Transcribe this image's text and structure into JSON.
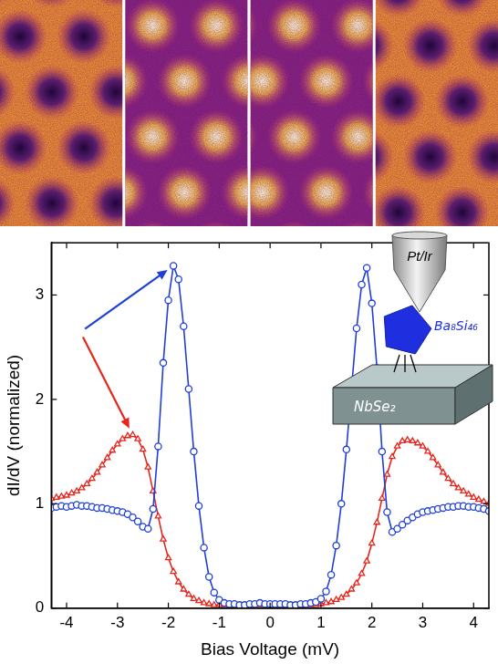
{
  "chart_data": {
    "type": "line",
    "x_label": "Bias Voltage (mV)",
    "y_label": "dI/dV (normalized)",
    "annotations": {
      "tip": "Pt/Ir",
      "cluster": "Ba₈Si₄₆",
      "substrate": "NbSe₂"
    },
    "x": [
      -4.3,
      -4.2,
      -4.1,
      -4,
      -3.9,
      -3.8,
      -3.7,
      -3.6,
      -3.5,
      -3.4,
      -3.3,
      -3.2,
      -3.1,
      -3,
      -2.9,
      -2.8,
      -2.7,
      -2.6,
      -2.5,
      -2.4,
      -2.3,
      -2.2,
      -2.1,
      -2,
      -1.9,
      -1.8,
      -1.7,
      -1.6,
      -1.5,
      -1.4,
      -1.3,
      -1.2,
      -1.1,
      -1,
      -0.9,
      -0.8,
      -0.7,
      -0.6,
      -0.5,
      -0.4,
      -0.3,
      -0.2,
      -0.1,
      0,
      0.1,
      0.2,
      0.3,
      0.4,
      0.5,
      0.6,
      0.7,
      0.8,
      0.9,
      1,
      1.1,
      1.2,
      1.3,
      1.4,
      1.5,
      1.6,
      1.7,
      1.8,
      1.9,
      2,
      2.1,
      2.2,
      2.3,
      2.4,
      2.5,
      2.6,
      2.7,
      2.8,
      2.9,
      3,
      3.1,
      3.2,
      3.3,
      3.4,
      3.5,
      3.6,
      3.7,
      3.8,
      3.9,
      4,
      4.1,
      4.2,
      4.3
    ],
    "series": [
      {
        "color": "#1f3fd8",
        "marker": "circle",
        "line_style": "solid",
        "values": [
          0.96,
          0.97,
          0.98,
          0.97,
          0.98,
          0.99,
          0.98,
          0.98,
          0.97,
          0.96,
          0.96,
          0.95,
          0.94,
          0.93,
          0.92,
          0.9,
          0.87,
          0.83,
          0.78,
          0.76,
          0.95,
          1.55,
          2.35,
          2.95,
          3.28,
          3.15,
          2.7,
          2.1,
          1.5,
          0.98,
          0.58,
          0.3,
          0.15,
          0.08,
          0.05,
          0.04,
          0.04,
          0.03,
          0.03,
          0.04,
          0.04,
          0.05,
          0.04,
          0.04,
          0.04,
          0.04,
          0.04,
          0.03,
          0.03,
          0.04,
          0.04,
          0.05,
          0.06,
          0.09,
          0.16,
          0.32,
          0.6,
          1.0,
          1.52,
          2.1,
          2.68,
          3.1,
          3.26,
          2.92,
          2.3,
          1.5,
          0.92,
          0.73,
          0.76,
          0.8,
          0.84,
          0.87,
          0.9,
          0.92,
          0.93,
          0.94,
          0.95,
          0.96,
          0.97,
          0.97,
          0.98,
          0.98,
          0.97,
          0.97,
          0.96,
          0.95,
          0.93
        ]
      },
      {
        "color": "#e8251c",
        "marker": "triangle",
        "line_style": "solid",
        "values": [
          1.05,
          1.06,
          1.07,
          1.08,
          1.1,
          1.12,
          1.15,
          1.19,
          1.24,
          1.3,
          1.37,
          1.44,
          1.51,
          1.57,
          1.62,
          1.65,
          1.66,
          1.62,
          1.52,
          1.35,
          1.12,
          0.88,
          0.66,
          0.48,
          0.35,
          0.25,
          0.18,
          0.13,
          0.09,
          0.07,
          0.05,
          0.04,
          0.03,
          0.03,
          0.03,
          0.02,
          0.02,
          0.02,
          0.02,
          0.03,
          0.03,
          0.03,
          0.03,
          0.03,
          0.03,
          0.03,
          0.03,
          0.02,
          0.02,
          0.02,
          0.02,
          0.03,
          0.03,
          0.04,
          0.05,
          0.06,
          0.08,
          0.1,
          0.13,
          0.18,
          0.24,
          0.33,
          0.45,
          0.62,
          0.82,
          1.05,
          1.28,
          1.45,
          1.55,
          1.6,
          1.61,
          1.6,
          1.58,
          1.55,
          1.5,
          1.44,
          1.37,
          1.3,
          1.24,
          1.19,
          1.15,
          1.12,
          1.09,
          1.06,
          1.04,
          1.02,
          1.0
        ]
      }
    ],
    "xlim": [
      -4.3,
      4.3
    ],
    "xticks": [
      -4,
      -3,
      -2,
      -1,
      0,
      1,
      2,
      3,
      4
    ],
    "ylim": [
      0,
      3.5
    ],
    "yticks": [
      0,
      1,
      2,
      3
    ],
    "grid": false
  }
}
